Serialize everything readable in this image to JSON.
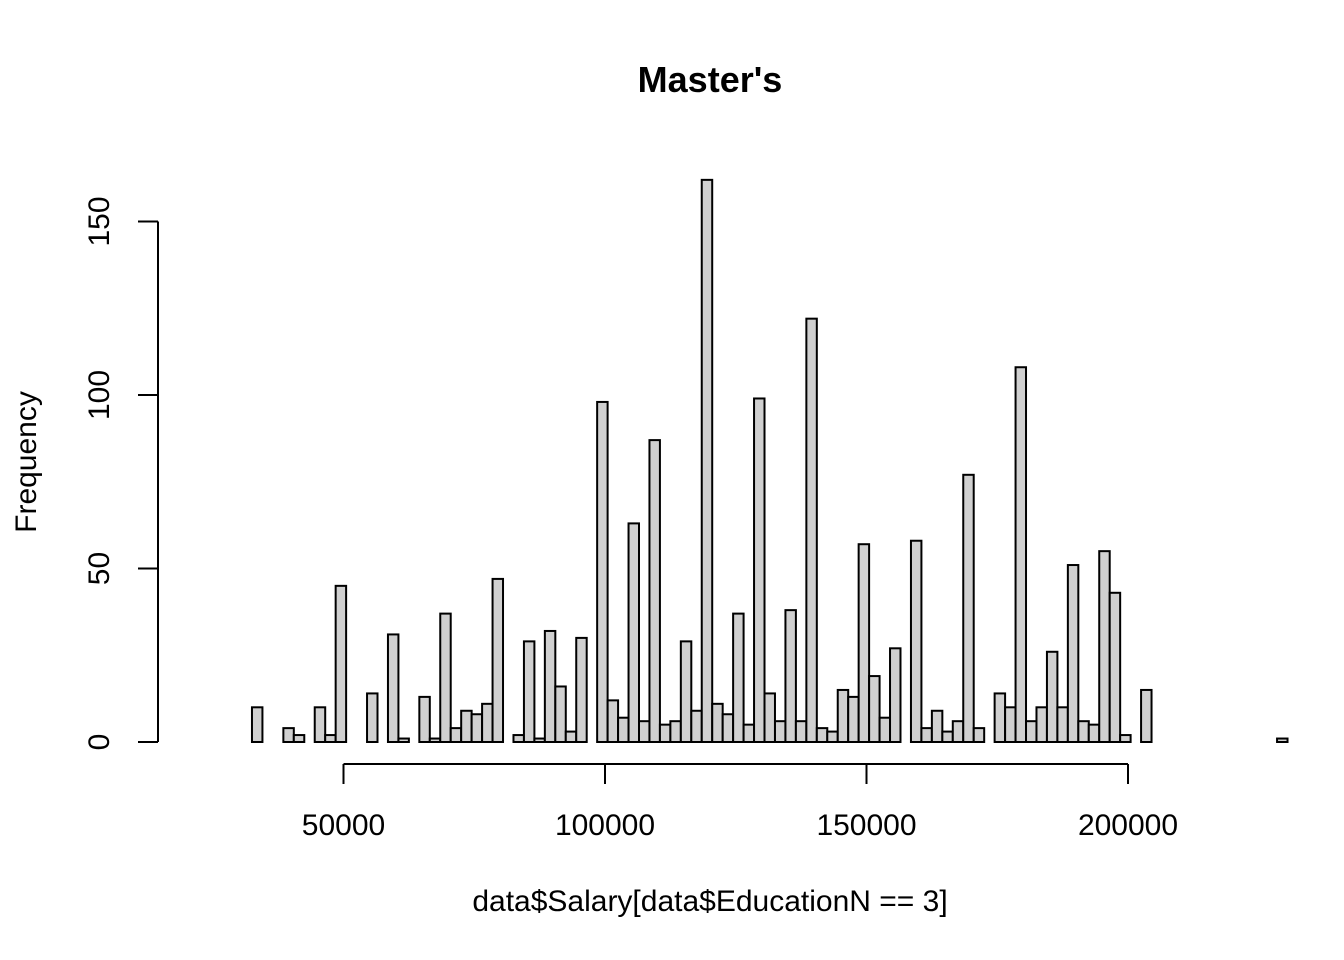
{
  "chart_data": {
    "type": "bar",
    "title": "Master's",
    "xlabel": "data$Salary[data$EducationN == 3]",
    "ylabel": "Frequency",
    "xlim": [
      30000,
      230000
    ],
    "ylim": [
      0,
      165
    ],
    "bin_start": 32500,
    "bin_width": 2000,
    "x_ticks": [
      50000,
      100000,
      150000,
      200000
    ],
    "x_tick_labels": [
      "50000",
      "100000",
      "150000",
      "200000"
    ],
    "y_ticks": [
      0,
      50,
      100,
      150
    ],
    "y_tick_labels": [
      "0",
      "50",
      "100",
      "150"
    ],
    "values": [
      10,
      0,
      0,
      4,
      2,
      0,
      10,
      2,
      45,
      0,
      0,
      14,
      0,
      31,
      1,
      0,
      13,
      1,
      37,
      4,
      9,
      8,
      11,
      47,
      0,
      2,
      29,
      1,
      32,
      16,
      3,
      30,
      0,
      98,
      12,
      7,
      63,
      6,
      87,
      5,
      6,
      29,
      9,
      162,
      11,
      8,
      37,
      5,
      99,
      14,
      6,
      38,
      6,
      122,
      4,
      3,
      15,
      13,
      57,
      19,
      7,
      27,
      0,
      58,
      4,
      9,
      3,
      6,
      77,
      4,
      0,
      14,
      10,
      108,
      6,
      10,
      26,
      10,
      51,
      6,
      5,
      55,
      43,
      2,
      0,
      15,
      0,
      0,
      0,
      0,
      0,
      0,
      0,
      0,
      0,
      0,
      0,
      0,
      1
    ],
    "bar_fill": "#d0d0d0",
    "bar_stroke": "#000000",
    "grid": false
  }
}
